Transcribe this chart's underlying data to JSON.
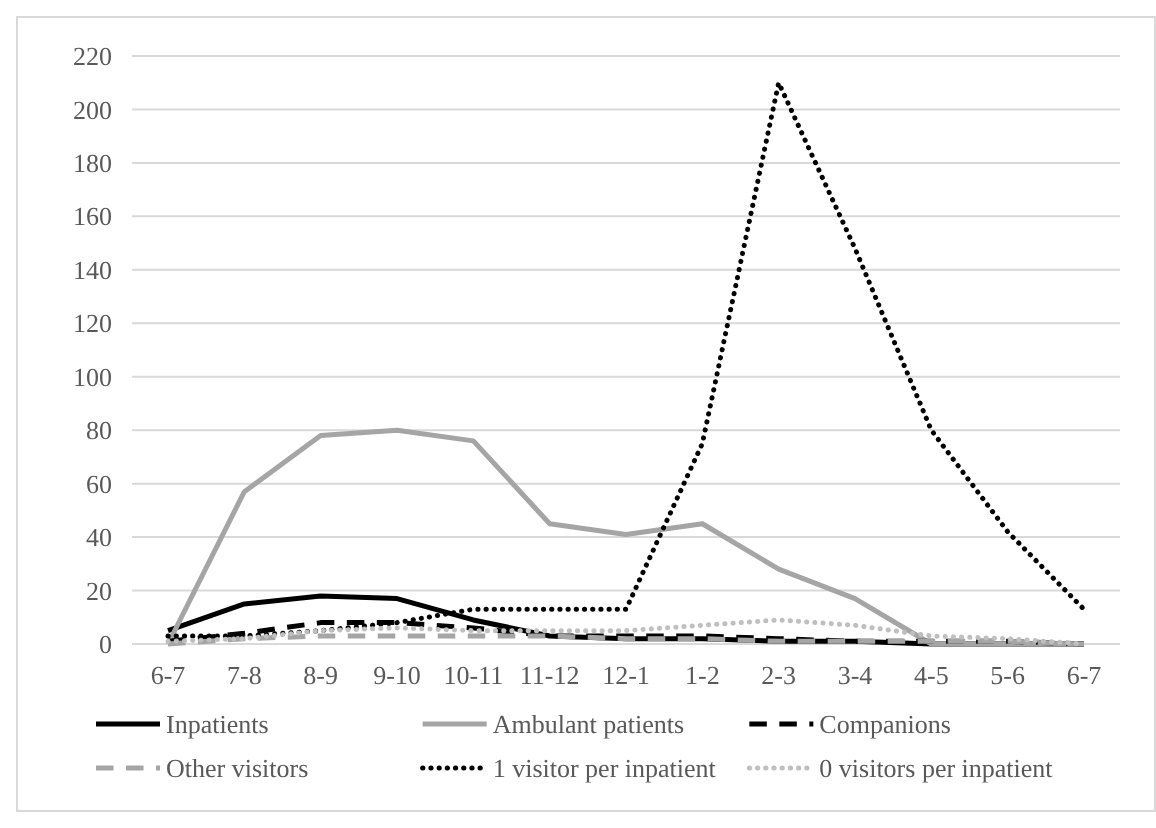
{
  "chart_data": {
    "type": "line",
    "categories": [
      "6-7",
      "7-8",
      "8-9",
      "9-10",
      "10-11",
      "11-12",
      "12-1",
      "1-2",
      "2-3",
      "3-4",
      "4-5",
      "5-6",
      "6-7"
    ],
    "ylim": [
      0,
      220
    ],
    "yticks": [
      0,
      20,
      40,
      60,
      80,
      100,
      120,
      140,
      160,
      180,
      200,
      220
    ],
    "grid": "y",
    "legend": "bottom",
    "marker": "none",
    "series": [
      {
        "name": "Inpatients",
        "color": "#000000",
        "line_style": "solid",
        "values": [
          5,
          15,
          18,
          17,
          9,
          3,
          2,
          2,
          1,
          1,
          0,
          0,
          0
        ]
      },
      {
        "name": "Ambulant patients",
        "color": "#a5a5a5",
        "line_style": "solid",
        "values": [
          0,
          57,
          78,
          80,
          76,
          45,
          41,
          45,
          28,
          17,
          0,
          0,
          0
        ]
      },
      {
        "name": "Companions",
        "color": "#000000",
        "line_style": "dashed",
        "values": [
          1,
          4,
          8,
          8,
          6,
          3,
          3,
          3,
          2,
          1,
          1,
          1,
          0
        ]
      },
      {
        "name": "Other visitors",
        "color": "#a5a5a5",
        "line_style": "dashed",
        "values": [
          0,
          2,
          3,
          3,
          3,
          3,
          2,
          2,
          1,
          1,
          1,
          1,
          0
        ]
      },
      {
        "name": "1 visitor per inpatient",
        "color": "#000000",
        "line_style": "dotted",
        "values": [
          3,
          3,
          5,
          8,
          13,
          13,
          13,
          75,
          210,
          148,
          80,
          42,
          13
        ]
      },
      {
        "name": "0 visitors per inpatient",
        "color": "#bfbfbf",
        "line_style": "dotted",
        "values": [
          1,
          2,
          5,
          6,
          5,
          5,
          5,
          7,
          9,
          7,
          3,
          2,
          0
        ]
      }
    ]
  }
}
